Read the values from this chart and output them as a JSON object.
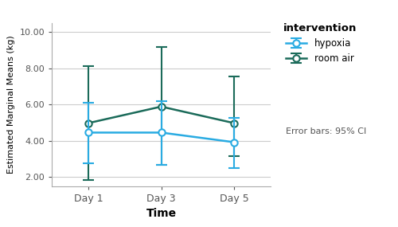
{
  "x_positions": [
    0,
    1,
    2
  ],
  "x_labels": [
    "Day 1",
    "Day 3",
    "Day 5"
  ],
  "hypoxia_means": [
    4.45,
    4.45,
    3.92
  ],
  "hypoxia_ci_low": [
    2.75,
    2.65,
    2.48
  ],
  "hypoxia_ci_high": [
    6.1,
    6.2,
    5.28
  ],
  "roomair_means": [
    4.97,
    5.88,
    4.97
  ],
  "roomair_ci_low": [
    1.82,
    2.65,
    3.15
  ],
  "roomair_ci_high": [
    8.1,
    9.15,
    7.52
  ],
  "hypoxia_color": "#29ABE2",
  "roomair_color": "#1B6B5A",
  "ylabel": "Estimated Marginal Means (kg)",
  "xlabel": "Time",
  "ylim": [
    1.5,
    10.5
  ],
  "yticks": [
    2.0,
    4.0,
    6.0,
    8.0,
    10.0
  ],
  "ytick_labels": [
    "2.00",
    "4.00",
    "6.00",
    "8.00",
    "10.00"
  ],
  "legend_title": "intervention",
  "legend_hypoxia": "hypoxia",
  "legend_roomair": "room air",
  "error_bar_note": "Error bars: 95% CI",
  "plot_bg_color": "#ffffff",
  "fig_bg_color": "#ffffff",
  "grid_color": "#cccccc"
}
